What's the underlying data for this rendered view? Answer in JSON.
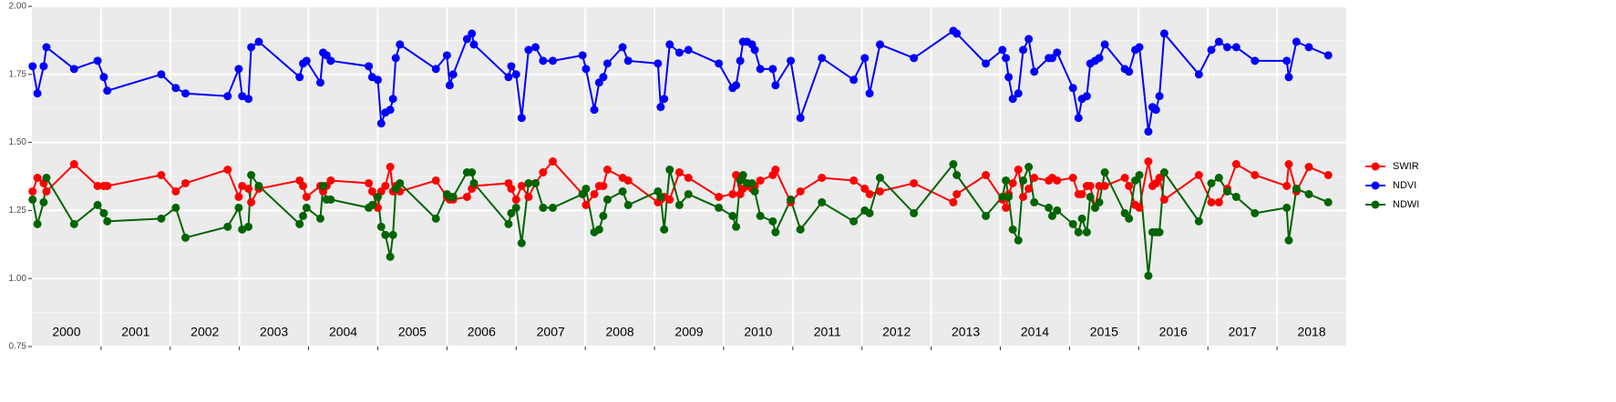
{
  "chart_data": {
    "type": "line",
    "x": [
      2000.01,
      2000.08,
      2000.17,
      2000.21,
      2000.61,
      2000.95,
      2001.04,
      2001.09,
      2001.87,
      2002.08,
      2002.22,
      2002.83,
      2002.99,
      2003.04,
      2003.13,
      2003.17,
      2003.28,
      2003.87,
      2003.92,
      2003.97,
      2004.17,
      2004.21,
      2004.26,
      2004.32,
      2004.87,
      2004.92,
      2005.0,
      2005.05,
      2005.11,
      2005.18,
      2005.22,
      2005.26,
      2005.32,
      2005.84,
      2006.0,
      2006.04,
      2006.09,
      2006.29,
      2006.36,
      2006.39,
      2006.89,
      2006.93,
      2007.0,
      2007.08,
      2007.18,
      2007.28,
      2007.39,
      2007.53,
      2007.96,
      2008.01,
      2008.13,
      2008.2,
      2008.26,
      2008.32,
      2008.54,
      2008.62,
      2009.05,
      2009.09,
      2009.14,
      2009.22,
      2009.36,
      2009.49,
      2009.93,
      2010.13,
      2010.18,
      2010.24,
      2010.28,
      2010.34,
      2010.41,
      2010.45,
      2010.53,
      2010.71,
      2010.75,
      2010.97,
      2011.11,
      2011.42,
      2011.88,
      2012.04,
      2012.11,
      2012.26,
      2012.75,
      2013.32,
      2013.37,
      2013.79,
      2014.03,
      2014.08,
      2014.12,
      2014.18,
      2014.26,
      2014.33,
      2014.41,
      2014.49,
      2014.7,
      2014.75,
      2014.82,
      2015.05,
      2015.13,
      2015.18,
      2015.25,
      2015.3,
      2015.37,
      2015.43,
      2015.51,
      2015.8,
      2015.86,
      2015.95,
      2016.01,
      2016.14,
      2016.2,
      2016.25,
      2016.3,
      2016.37,
      2016.87,
      2017.05,
      2017.16,
      2017.28,
      2017.41,
      2017.68,
      2018.14,
      2018.17,
      2018.28,
      2018.46,
      2018.74
    ],
    "series": [
      {
        "name": "SWIR",
        "color": "#ff0000",
        "values": [
          1.32,
          1.37,
          1.35,
          1.32,
          1.42,
          1.34,
          1.34,
          1.34,
          1.38,
          1.32,
          1.35,
          1.4,
          1.3,
          1.34,
          1.33,
          1.28,
          1.33,
          1.36,
          1.34,
          1.3,
          1.34,
          1.32,
          1.34,
          1.36,
          1.35,
          1.32,
          1.26,
          1.32,
          1.34,
          1.41,
          1.32,
          1.34,
          1.32,
          1.36,
          1.3,
          1.29,
          1.29,
          1.3,
          1.33,
          1.34,
          1.35,
          1.33,
          1.29,
          1.34,
          1.3,
          1.35,
          1.39,
          1.43,
          1.31,
          1.27,
          1.31,
          1.34,
          1.34,
          1.4,
          1.37,
          1.36,
          1.28,
          1.29,
          1.3,
          1.29,
          1.39,
          1.37,
          1.3,
          1.31,
          1.38,
          1.31,
          1.33,
          1.34,
          1.33,
          1.34,
          1.36,
          1.38,
          1.4,
          1.28,
          1.32,
          1.37,
          1.36,
          1.33,
          1.31,
          1.32,
          1.35,
          1.28,
          1.31,
          1.38,
          1.29,
          1.26,
          1.31,
          1.35,
          1.4,
          1.3,
          1.33,
          1.37,
          1.36,
          1.37,
          1.36,
          1.37,
          1.31,
          1.31,
          1.34,
          1.34,
          1.26,
          1.34,
          1.34,
          1.37,
          1.34,
          1.27,
          1.26,
          1.43,
          1.34,
          1.35,
          1.37,
          1.29,
          1.38,
          1.28,
          1.28,
          1.33,
          1.42,
          1.38,
          1.34,
          1.42,
          1.32,
          1.41,
          1.38
        ]
      },
      {
        "name": "NDVI",
        "color": "#0000ff",
        "values": [
          1.78,
          1.68,
          1.78,
          1.85,
          1.77,
          1.8,
          1.74,
          1.69,
          1.75,
          1.7,
          1.68,
          1.67,
          1.77,
          1.67,
          1.66,
          1.85,
          1.87,
          1.74,
          1.79,
          1.8,
          1.72,
          1.83,
          1.82,
          1.8,
          1.78,
          1.74,
          1.73,
          1.57,
          1.61,
          1.62,
          1.66,
          1.81,
          1.86,
          1.77,
          1.82,
          1.71,
          1.75,
          1.88,
          1.9,
          1.86,
          1.74,
          1.78,
          1.75,
          1.59,
          1.84,
          1.85,
          1.8,
          1.8,
          1.82,
          1.77,
          1.62,
          1.72,
          1.74,
          1.79,
          1.85,
          1.8,
          1.79,
          1.63,
          1.66,
          1.86,
          1.83,
          1.84,
          1.79,
          1.7,
          1.71,
          1.8,
          1.87,
          1.87,
          1.86,
          1.84,
          1.77,
          1.77,
          1.71,
          1.8,
          1.59,
          1.81,
          1.73,
          1.81,
          1.68,
          1.86,
          1.81,
          1.91,
          1.9,
          1.79,
          1.84,
          1.81,
          1.74,
          1.66,
          1.68,
          1.84,
          1.88,
          1.76,
          1.81,
          1.81,
          1.83,
          1.7,
          1.59,
          1.66,
          1.67,
          1.79,
          1.8,
          1.81,
          1.86,
          1.77,
          1.76,
          1.84,
          1.85,
          1.54,
          1.63,
          1.62,
          1.67,
          1.9,
          1.75,
          1.84,
          1.87,
          1.85,
          1.85,
          1.8,
          1.8,
          1.74,
          1.87,
          1.85,
          1.82
        ]
      },
      {
        "name": "NDWI",
        "color": "#006400",
        "values": [
          1.29,
          1.2,
          1.28,
          1.37,
          1.2,
          1.27,
          1.24,
          1.21,
          1.22,
          1.26,
          1.15,
          1.19,
          1.26,
          1.18,
          1.19,
          1.38,
          1.34,
          1.2,
          1.23,
          1.26,
          1.22,
          1.34,
          1.29,
          1.29,
          1.26,
          1.27,
          1.3,
          1.19,
          1.16,
          1.08,
          1.16,
          1.33,
          1.35,
          1.22,
          1.31,
          1.3,
          1.3,
          1.39,
          1.39,
          1.35,
          1.2,
          1.24,
          1.26,
          1.13,
          1.35,
          1.35,
          1.26,
          1.26,
          1.31,
          1.33,
          1.17,
          1.18,
          1.23,
          1.29,
          1.32,
          1.27,
          1.32,
          1.3,
          1.18,
          1.4,
          1.27,
          1.31,
          1.26,
          1.23,
          1.19,
          1.36,
          1.38,
          1.35,
          1.35,
          1.32,
          1.23,
          1.21,
          1.17,
          1.29,
          1.18,
          1.28,
          1.21,
          1.25,
          1.24,
          1.37,
          1.24,
          1.42,
          1.38,
          1.23,
          1.3,
          1.36,
          1.3,
          1.18,
          1.14,
          1.36,
          1.41,
          1.28,
          1.26,
          1.23,
          1.25,
          1.2,
          1.17,
          1.22,
          1.17,
          1.3,
          1.26,
          1.28,
          1.39,
          1.24,
          1.22,
          1.36,
          1.38,
          1.01,
          1.17,
          1.17,
          1.17,
          1.39,
          1.21,
          1.35,
          1.37,
          1.32,
          1.3,
          1.24,
          1.26,
          1.14,
          1.33,
          1.31,
          1.28
        ]
      }
    ],
    "xlim": [
      2000,
      2019
    ],
    "xticks": [
      2001,
      2002,
      2003,
      2004,
      2005,
      2006,
      2007,
      2008,
      2009,
      2010,
      2011,
      2012,
      2013,
      2014,
      2015,
      2016,
      2017,
      2018
    ],
    "ylim": [
      0.75,
      2
    ],
    "yticks": [
      0.75,
      {
        "value": 1,
        "label": "1.00"
      },
      1.25,
      {
        "value": 1.5,
        "label": "1.50"
      },
      1.75,
      {
        "value": 2,
        "label": "2.00"
      }
    ],
    "annotations": [
      {
        "text": "2000",
        "x": 2000.5
      },
      {
        "text": "2001",
        "x": 2001.5
      },
      {
        "text": "2002",
        "x": 2002.5
      },
      {
        "text": "2003",
        "x": 2003.5
      },
      {
        "text": "2004",
        "x": 2004.5
      },
      {
        "text": "2005",
        "x": 2005.5
      },
      {
        "text": "2006",
        "x": 2006.5
      },
      {
        "text": "2007",
        "x": 2007.5
      },
      {
        "text": "2008",
        "x": 2008.5
      },
      {
        "text": "2009",
        "x": 2009.5
      },
      {
        "text": "2010",
        "x": 2010.5
      },
      {
        "text": "2011",
        "x": 2011.5
      },
      {
        "text": "2012",
        "x": 2012.5
      },
      {
        "text": "2013",
        "x": 2013.5
      },
      {
        "text": "2014",
        "x": 2014.5
      },
      {
        "text": "2015",
        "x": 2015.5
      },
      {
        "text": "2016",
        "x": 2016.5
      },
      {
        "text": "2017",
        "x": 2017.5
      },
      {
        "text": "2018",
        "x": 2018.5
      }
    ],
    "grid": true,
    "legend": "right"
  }
}
